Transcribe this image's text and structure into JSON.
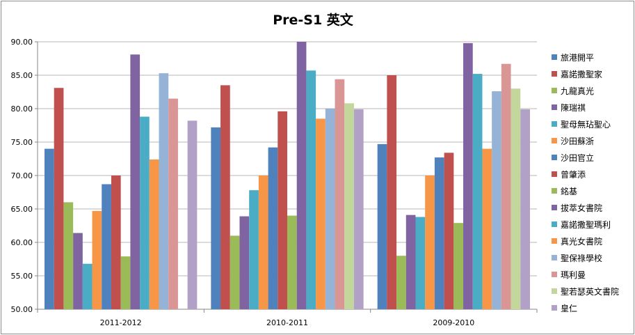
{
  "chart_data": {
    "type": "bar",
    "title": "Pre-S1 英文",
    "xlabel": "",
    "ylabel": "",
    "ylim": [
      50,
      90
    ],
    "yticks": [
      "50.00",
      "55.00",
      "60.00",
      "65.00",
      "70.00",
      "75.00",
      "80.00",
      "85.00",
      "90.00"
    ],
    "grid": true,
    "legend": "right",
    "categories": [
      "2011-2012",
      "2010-2011",
      "2009-2010"
    ],
    "series": [
      {
        "name": "旅港開平",
        "color": "#4f81bd",
        "values": [
          74.0,
          77.2,
          74.7
        ]
      },
      {
        "name": "嘉諾撒聖家",
        "color": "#c0504d",
        "values": [
          83.1,
          83.5,
          85.0
        ]
      },
      {
        "name": "九龍真光",
        "color": "#9bbb59",
        "values": [
          66.0,
          61.0,
          58.0
        ]
      },
      {
        "name": "陳瑞祺",
        "color": "#8064a2",
        "values": [
          61.4,
          63.9,
          64.1
        ]
      },
      {
        "name": "聖母無玷聖心",
        "color": "#4bacc6",
        "values": [
          56.8,
          67.8,
          63.8
        ]
      },
      {
        "name": "沙田蘇浙",
        "color": "#f79646",
        "values": [
          64.7,
          70.0,
          70.0
        ]
      },
      {
        "name": "沙田官立",
        "color": "#4f81bd",
        "values": [
          68.7,
          74.2,
          72.7
        ]
      },
      {
        "name": "曾肇添",
        "color": "#c0504d",
        "values": [
          70.0,
          79.6,
          73.4
        ]
      },
      {
        "name": "銘基",
        "color": "#9bbb59",
        "values": [
          57.9,
          64.0,
          62.9
        ]
      },
      {
        "name": "拔萃女書院",
        "color": "#8064a2",
        "values": [
          88.1,
          90.0,
          89.8
        ]
      },
      {
        "name": "嘉諾撒聖瑪利",
        "color": "#4bacc6",
        "values": [
          78.8,
          85.7,
          85.2
        ]
      },
      {
        "name": "真光女書院",
        "color": "#f79646",
        "values": [
          72.4,
          78.5,
          74.0
        ]
      },
      {
        "name": "聖保祿學校",
        "color": "#95b3d7",
        "values": [
          85.3,
          80.0,
          82.6
        ]
      },
      {
        "name": "瑪利曼",
        "color": "#d99694",
        "values": [
          81.5,
          84.4,
          86.7
        ]
      },
      {
        "name": "聖若瑟英文書院",
        "color": "#c3d69b",
        "values": [
          null,
          80.8,
          83.0
        ]
      },
      {
        "name": "皇仁",
        "color": "#b2a1c7",
        "values": [
          78.2,
          79.9,
          79.9
        ]
      }
    ]
  }
}
